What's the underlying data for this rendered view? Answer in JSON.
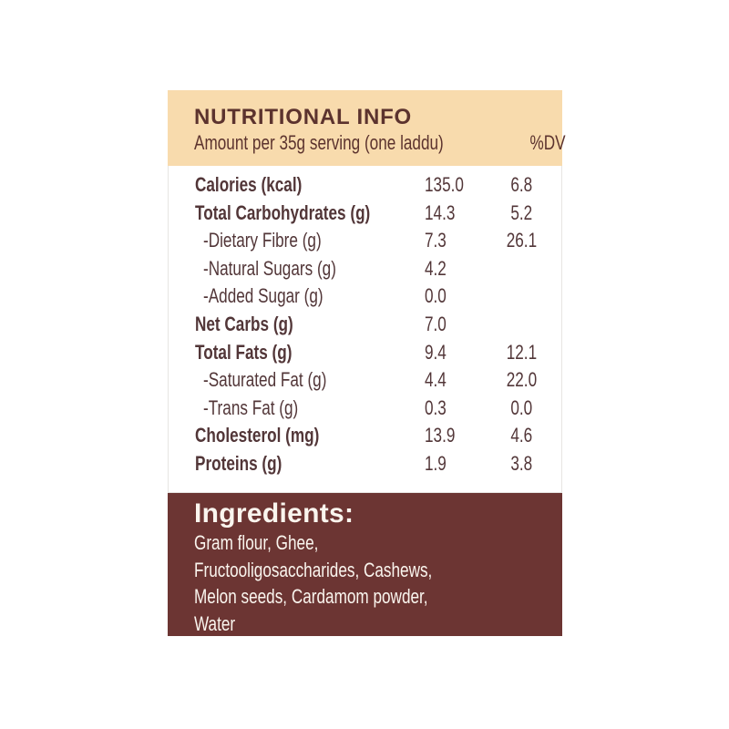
{
  "header": {
    "title": "NUTRITIONAL INFO",
    "subtitle": "Amount per 35g serving (one laddu)",
    "dv_label": "%DV"
  },
  "table": {
    "rows": [
      {
        "label": "Calories (kcal)",
        "amount": "135.0",
        "dv": "6.8"
      },
      {
        "label": "Total Carbohydrates (g)",
        "amount": "14.3",
        "dv": "5.2"
      },
      {
        "label": "-Dietary Fibre (g)",
        "amount": "7.3",
        "dv": "26.1"
      },
      {
        "label": "-Natural Sugars (g)",
        "amount": "4.2",
        "dv": ""
      },
      {
        "label": "-Added Sugar (g)",
        "amount": "0.0",
        "dv": ""
      },
      {
        "label": "Net Carbs (g)",
        "amount": "7.0",
        "dv": ""
      },
      {
        "label": "Total Fats (g)",
        "amount": "9.4",
        "dv": "12.1"
      },
      {
        "label": "-Saturated Fat (g)",
        "amount": "4.4",
        "dv": "22.0"
      },
      {
        "label": "-Trans Fat (g)",
        "amount": "0.3",
        "dv": "0.0"
      },
      {
        "label": "Cholesterol (mg)",
        "amount": "13.9",
        "dv": "4.6"
      },
      {
        "label": "Proteins (g)",
        "amount": "1.9",
        "dv": "3.8"
      }
    ]
  },
  "ingredients": {
    "heading": "Ingredients:",
    "lines": [
      "Gram flour, Ghee,",
      "Fructooligosaccharides, Cashews,",
      "Melon seeds, Cardamom powder,",
      "Water"
    ]
  },
  "colors": {
    "header_bg": "#F8DBAD",
    "ingredients_bg": "#6C3533",
    "title_text": "#5C332E",
    "table_text": "#523638",
    "light_text": "#FAF5EE"
  }
}
